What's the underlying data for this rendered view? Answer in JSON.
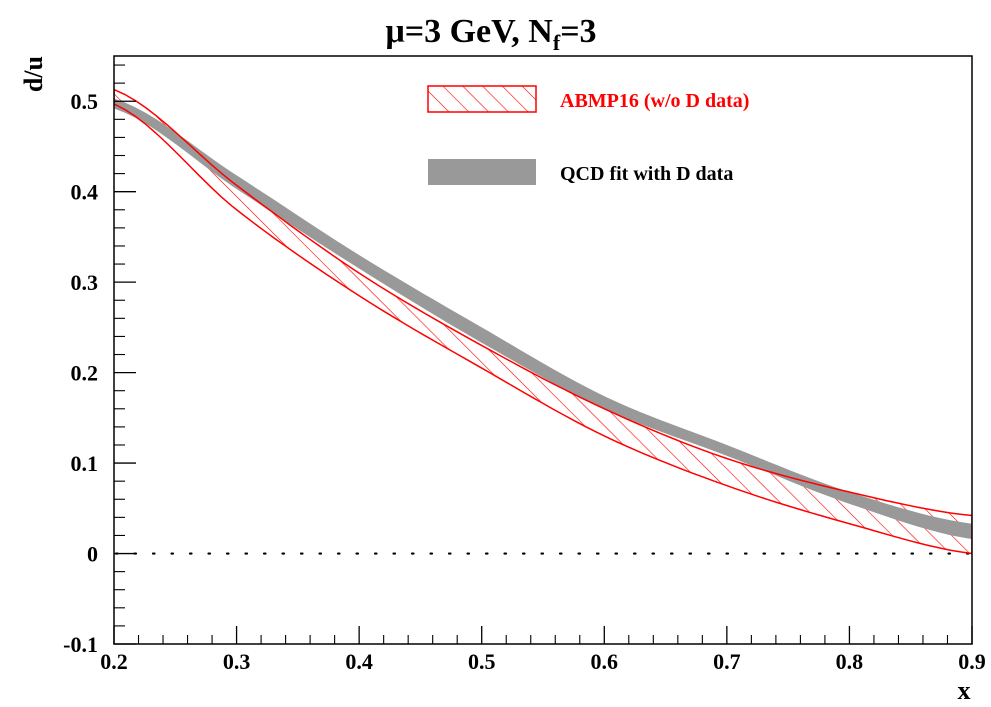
{
  "chart_data": {
    "type": "area",
    "title": "μ=3 GeV, N",
    "title_subscript": "f",
    "title_suffix": "=3",
    "xlabel": "x",
    "ylabel": "d/u",
    "xlim": [
      0.2,
      0.9
    ],
    "ylim": [
      -0.1,
      0.55
    ],
    "x_ticks": [
      "0.2",
      "0.3",
      "0.4",
      "0.5",
      "0.6",
      "0.7",
      "0.8",
      "0.9"
    ],
    "y_ticks": [
      "-0.1",
      "0",
      "0.1",
      "0.2",
      "0.3",
      "0.4",
      "0.5"
    ],
    "reference_line": {
      "y": 0,
      "style": "dotted"
    },
    "legend_position": "top-right",
    "series": [
      {
        "name": "ABMP16 (w/o D data)",
        "style": "hatched band",
        "color": "#ff0000",
        "x": [
          0.2,
          0.3,
          0.4,
          0.5,
          0.6,
          0.7,
          0.8,
          0.9
        ],
        "upper": [
          0.513,
          0.407,
          0.31,
          0.23,
          0.16,
          0.105,
          0.068,
          0.042
        ],
        "lower": [
          0.497,
          0.38,
          0.285,
          0.205,
          0.13,
          0.075,
          0.033,
          0.0
        ]
      },
      {
        "name": "QCD fit with D data",
        "style": "solid band",
        "color": "#999999",
        "x": [
          0.2,
          0.3,
          0.4,
          0.5,
          0.6,
          0.7,
          0.8,
          0.9
        ],
        "upper": [
          0.503,
          0.418,
          0.33,
          0.25,
          0.174,
          0.12,
          0.068,
          0.033
        ],
        "lower": [
          0.492,
          0.403,
          0.315,
          0.233,
          0.16,
          0.108,
          0.055,
          0.016
        ]
      }
    ]
  }
}
